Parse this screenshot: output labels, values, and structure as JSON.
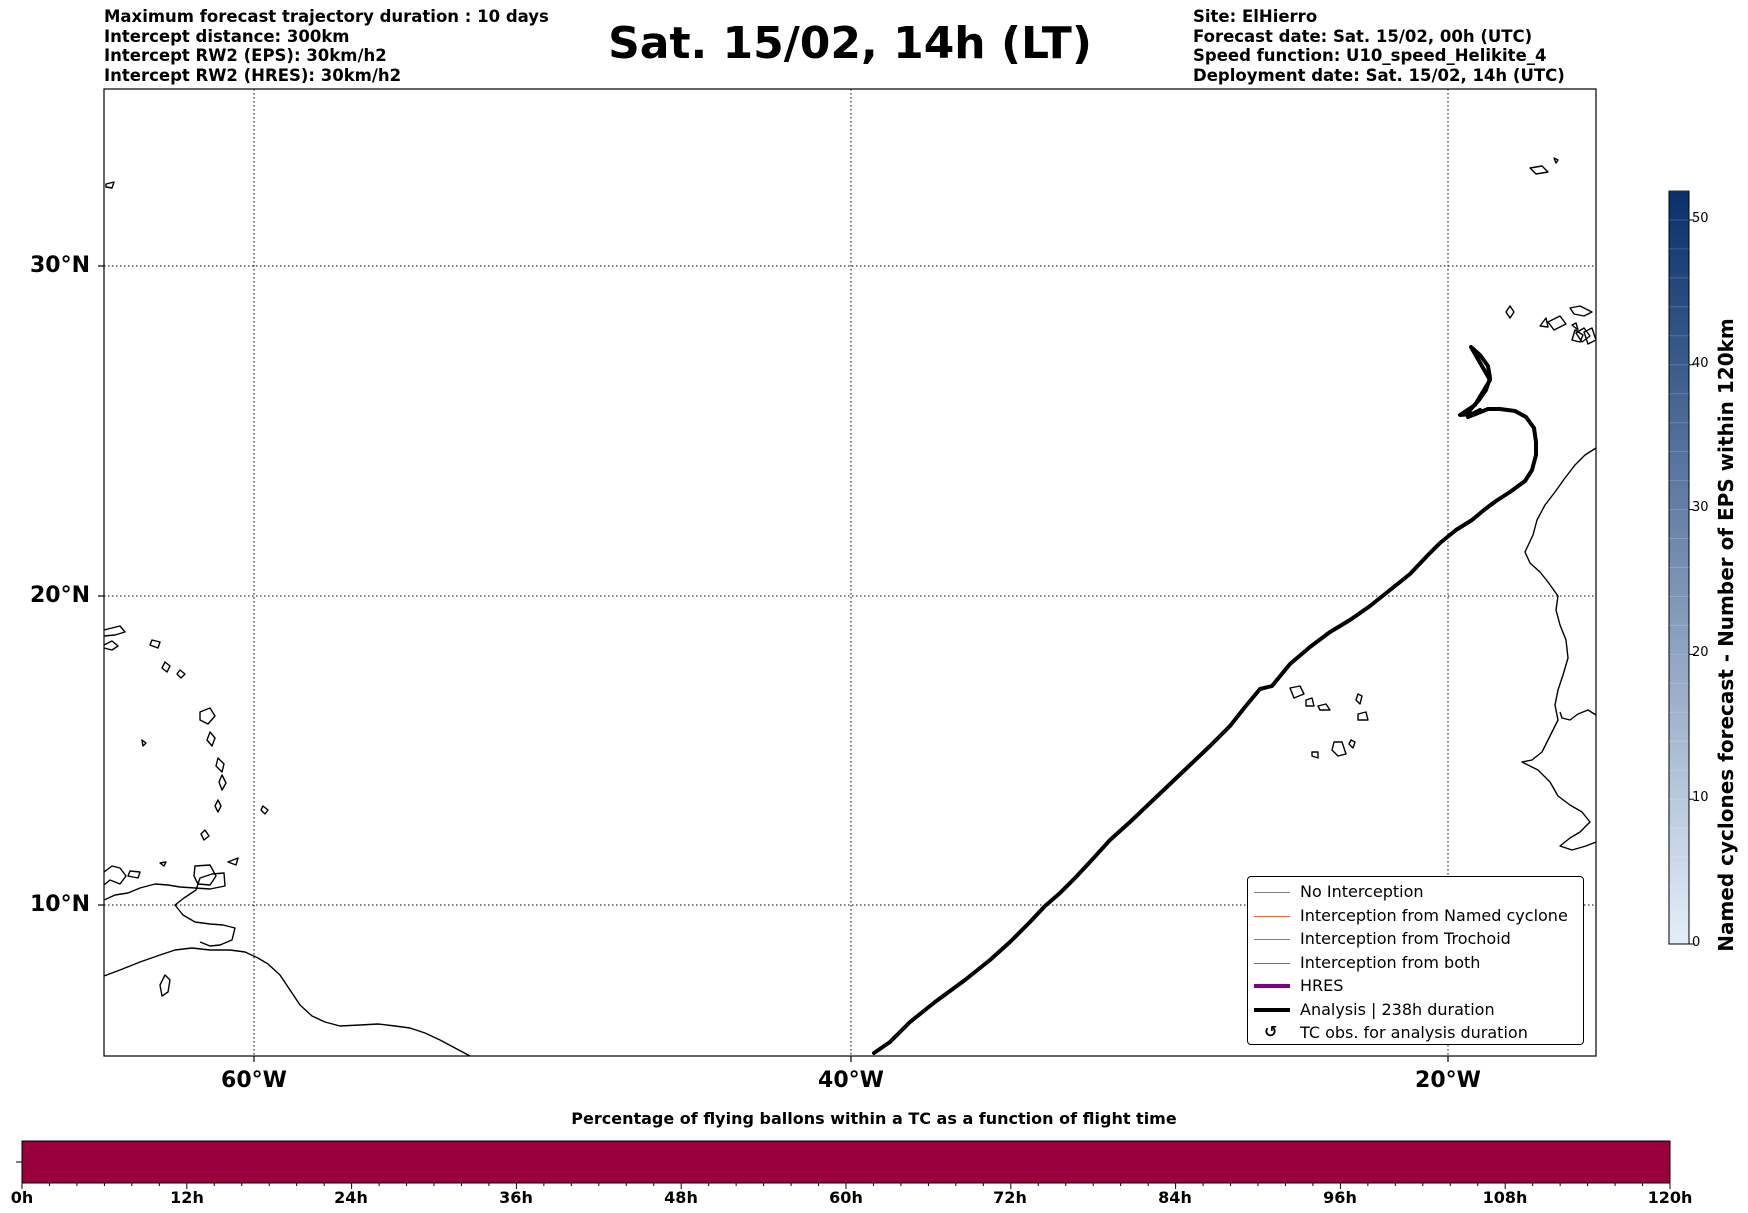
{
  "header": {
    "left_lines": [
      "Maximum forecast trajectory duration : 10 days",
      "Intercept distance: 300km",
      "Intercept RW2 (EPS):  30km/h2",
      "Intercept RW2 (HRES): 30km/h2"
    ],
    "title": "Sat. 15/02, 14h (LT)",
    "right_lines": [
      "Site: ElHierro",
      "Forecast date: Sat. 15/02, 00h (UTC)",
      "Speed function: U10_speed_Helikite_4",
      "Deployment date: Sat. 15/02, 14h (UTC)"
    ]
  },
  "map": {
    "lat_labels": [
      "30°N",
      "20°N",
      "10°N"
    ],
    "lon_labels": [
      "60°W",
      "40°W",
      "20°W"
    ],
    "extent": {
      "lon": [
        -65,
        -15
      ],
      "lat": [
        5,
        35
      ]
    },
    "trajectory_color": "#000000"
  },
  "legend": {
    "items": [
      {
        "label": "No Interception",
        "color": "#808080",
        "style": "thin"
      },
      {
        "label": "Interception from Named cyclone",
        "color": "#e8643c",
        "style": "thin"
      },
      {
        "label": "Interception from Trochoid",
        "color": "#8c8c14",
        "style": "thin"
      },
      {
        "label": "Interception from both",
        "color": "#2ca02c",
        "style": "thin"
      },
      {
        "label": "HRES",
        "color": "#800080",
        "style": "thick"
      },
      {
        "label": "Analysis | 238h duration",
        "color": "#000000",
        "style": "thick"
      },
      {
        "label": "TC obs. for analysis duration",
        "color": "#000000",
        "style": "glyph",
        "icon": "cyclone-icon"
      }
    ]
  },
  "colorbar": {
    "title": "Named cyclones forecast - Number of EPS within 120km",
    "ticks": [
      "0",
      "10",
      "20",
      "30",
      "40",
      "50"
    ],
    "max": 52,
    "color_low": "#e3eef9",
    "color_high": "#08306b"
  },
  "bottom_bar": {
    "title": "Percentage of flying ballons within a TC as a function of flight time",
    "ticks": [
      "0h",
      "12h",
      "24h",
      "36h",
      "48h",
      "60h",
      "72h",
      "84h",
      "96h",
      "108h",
      "120h"
    ],
    "fill_color": "#99003d",
    "fill_fraction": 1.0
  }
}
